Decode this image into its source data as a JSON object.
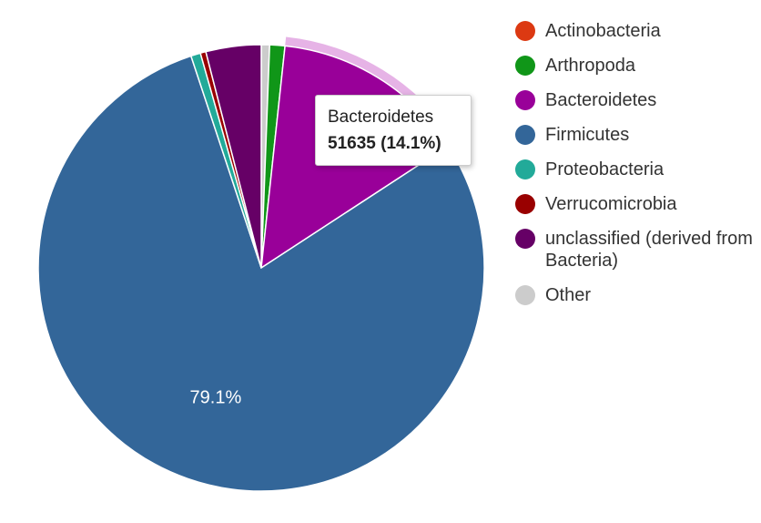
{
  "chart_data": {
    "type": "pie",
    "slices": [
      {
        "label": "Other",
        "percent": 0.6,
        "color": "#cccccc"
      },
      {
        "label": "Arthropoda",
        "percent": 1.1,
        "color": "#109618"
      },
      {
        "label": "Bacteroidetes",
        "value": 51635,
        "percent": 14.1,
        "color": "#990099"
      },
      {
        "label": "Firmicutes",
        "percent": 79.1,
        "color": "#336699"
      },
      {
        "label": "Proteobacteria",
        "percent": 0.7,
        "color": "#22aa99"
      },
      {
        "label": "Verrucomicrobia",
        "percent": 0.4,
        "color": "#990000"
      },
      {
        "label": "unclassified (derived from Bacteria)",
        "percent": 4.0,
        "color": "#660066"
      },
      {
        "label": "Actinobacteria",
        "percent": 0.0,
        "color": "#dc3912"
      }
    ],
    "slice_labels": [
      "79.1%"
    ],
    "highlighted": "Bacteroidetes",
    "legend_placement": "right"
  },
  "legend": [
    {
      "label": "Actinobacteria",
      "color": "#dc3912"
    },
    {
      "label": "Arthropoda",
      "color": "#109618"
    },
    {
      "label": "Bacteroidetes",
      "color": "#990099"
    },
    {
      "label": "Firmicutes",
      "color": "#336699"
    },
    {
      "label": "Proteobacteria",
      "color": "#22aa99"
    },
    {
      "label": "Verrucomicrobia",
      "color": "#990000"
    },
    {
      "label": "unclassified (derived from Bacteria)",
      "color": "#660066"
    },
    {
      "label": "Other",
      "color": "#cccccc"
    }
  ],
  "tooltip": {
    "name": "Bacteroidetes",
    "value": "51635 (14.1%)"
  },
  "highlight_ring_color": "#e6b3e6"
}
